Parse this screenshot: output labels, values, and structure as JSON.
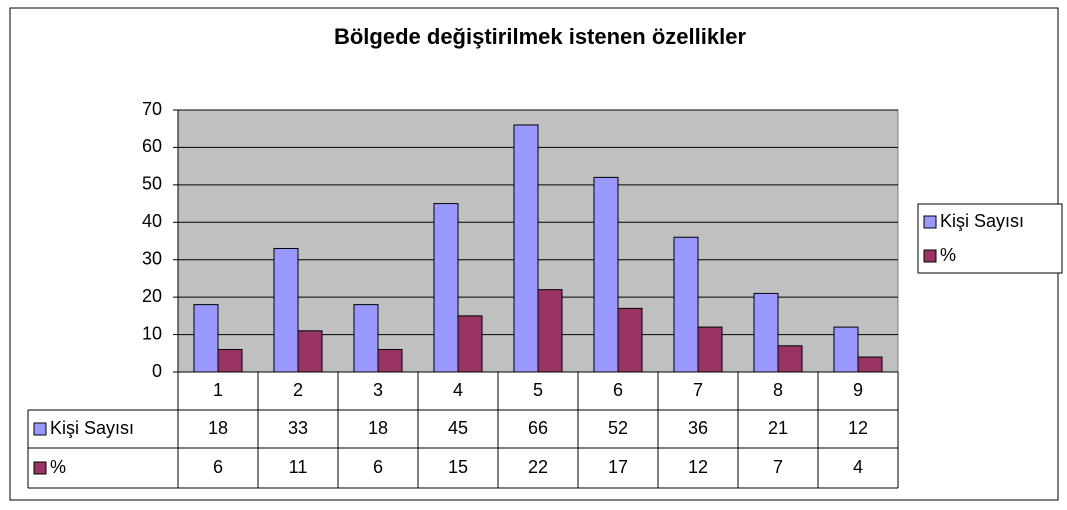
{
  "chart_data": {
    "type": "bar",
    "title": "Bölgede değiştirilmek istenen özellikler",
    "categories": [
      "1",
      "2",
      "3",
      "4",
      "5",
      "6",
      "7",
      "8",
      "9"
    ],
    "series": [
      {
        "name": "Kişi Sayısı",
        "color": "#9999ff",
        "values": [
          18,
          33,
          18,
          45,
          66,
          52,
          36,
          21,
          12
        ]
      },
      {
        "name": "%",
        "color": "#993366",
        "values": [
          6,
          11,
          6,
          15,
          22,
          17,
          12,
          7,
          4
        ]
      }
    ],
    "ylim": [
      0,
      70
    ],
    "yticks": [
      0,
      10,
      20,
      30,
      40,
      50,
      60,
      70
    ],
    "grid": true,
    "legend": "right",
    "data_table": true
  }
}
